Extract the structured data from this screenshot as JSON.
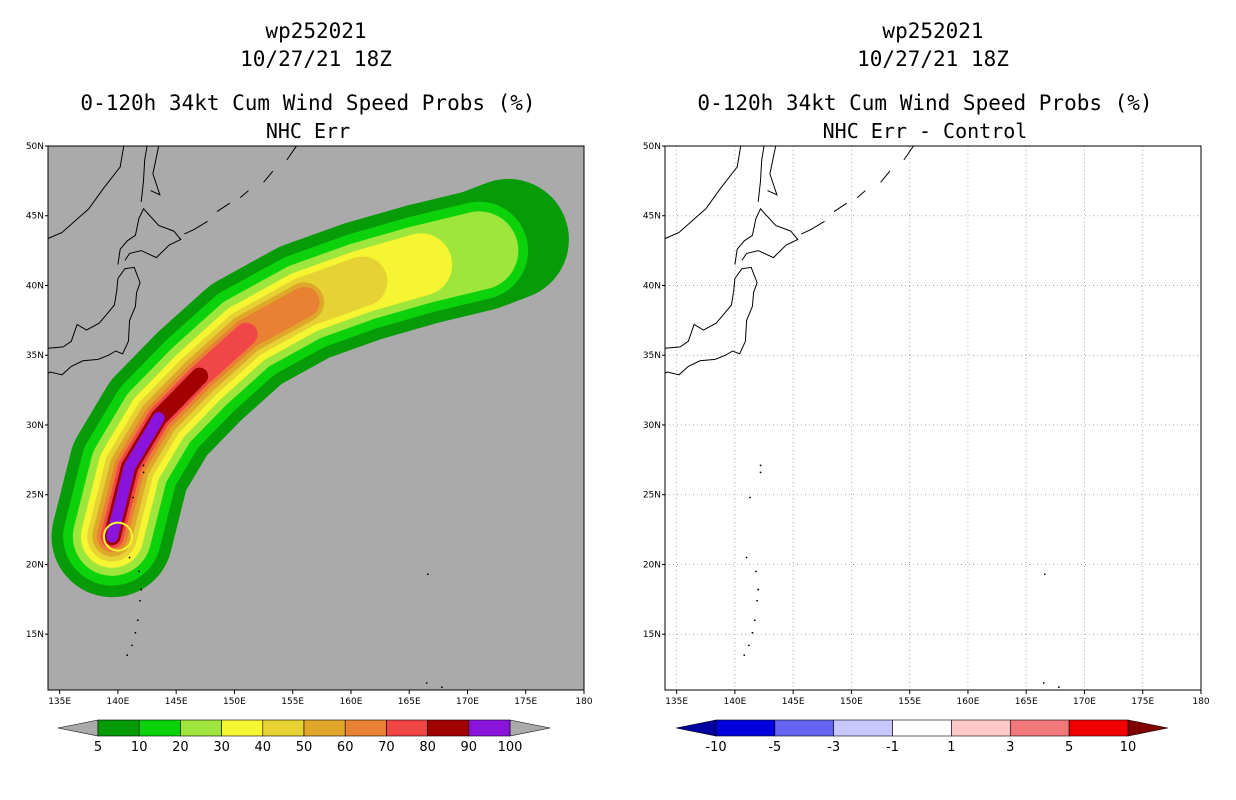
{
  "chart_data": [
    {
      "type": "heatmap",
      "title_lines": [
        "wp252021",
        "10/27/21 18Z",
        "0-120h 34kt Cum Wind Speed Probs (%)",
        "NHC Err"
      ],
      "x_ticks": [
        "135E",
        "140E",
        "145E",
        "150E",
        "155E",
        "160E",
        "165E",
        "170E",
        "175E",
        "180"
      ],
      "y_ticks": [
        "50N",
        "45N",
        "40N",
        "35N",
        "30N",
        "25N",
        "20N",
        "15N"
      ],
      "xlim": [
        134,
        180
      ],
      "ylim": [
        11,
        50
      ],
      "background": "#aaaaaa",
      "colorbar": {
        "labels": [
          "5",
          "10",
          "20",
          "30",
          "40",
          "50",
          "60",
          "70",
          "80",
          "90",
          "100"
        ],
        "colors": [
          "#079b07",
          "#0cd20c",
          "#9ee63c",
          "#f5f532",
          "#e6d232",
          "#e0a82a",
          "#e88232",
          "#f04646",
          "#a00000",
          "#8a14dc"
        ],
        "end_color": "#aaaaaa"
      },
      "track_axis": [
        [
          139.5,
          22
        ],
        [
          141,
          27
        ],
        [
          143.5,
          30.5
        ],
        [
          147,
          33.5
        ],
        [
          151,
          36.5
        ],
        [
          156,
          38.8
        ],
        [
          161,
          40.3
        ],
        [
          166,
          41.5
        ],
        [
          171,
          42.5
        ],
        [
          173.5,
          43.3
        ]
      ]
    },
    {
      "type": "heatmap",
      "title_lines": [
        "wp252021",
        "10/27/21 18Z",
        "0-120h 34kt Cum Wind Speed Probs (%)",
        "NHC Err - Control"
      ],
      "x_ticks": [
        "135E",
        "140E",
        "145E",
        "150E",
        "155E",
        "160E",
        "165E",
        "170E",
        "175E",
        "180"
      ],
      "y_ticks": [
        "50N",
        "45N",
        "40N",
        "35N",
        "30N",
        "25N",
        "20N",
        "15N"
      ],
      "xlim": [
        134,
        180
      ],
      "ylim": [
        11,
        50
      ],
      "background": "#ffffff",
      "grid": true,
      "colorbar": {
        "labels": [
          "-10",
          "-5",
          "-3",
          "-1",
          "1",
          "3",
          "5",
          "10"
        ],
        "colors": [
          "#0000dc",
          "#6464f0",
          "#c8c8ff",
          "#ffffff",
          "#ffc8c8",
          "#f07878",
          "#f00000"
        ],
        "end_left": "#0000a0",
        "end_right": "#800000"
      }
    }
  ]
}
